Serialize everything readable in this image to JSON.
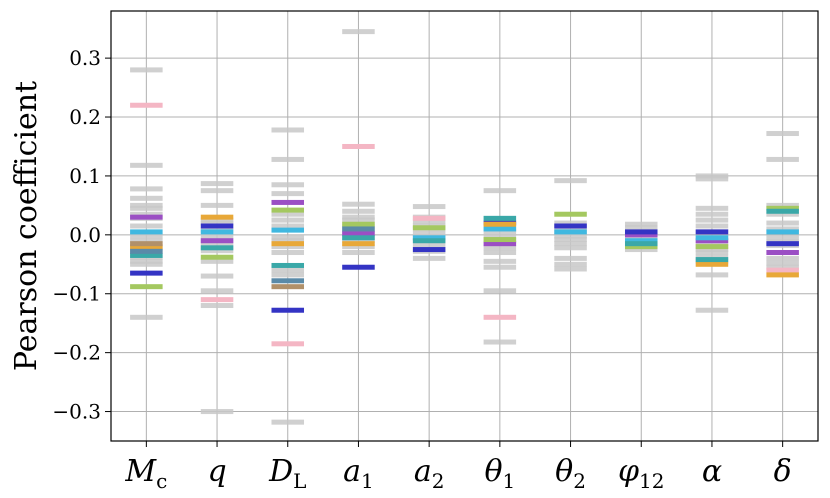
{
  "chart_data": {
    "type": "scatter",
    "title": "",
    "xlabel": "",
    "ylabel": "Pearson coefficient",
    "ylim": [
      -0.35,
      0.38
    ],
    "yticks": [
      -0.3,
      -0.2,
      -0.1,
      0.0,
      0.1,
      0.2,
      0.3
    ],
    "ytick_labels": [
      "−0.3",
      "−0.2",
      "−0.1",
      "0.0",
      "0.1",
      "0.2",
      "0.3"
    ],
    "grid": true,
    "categories": [
      "M_c",
      "q",
      "D_L",
      "a_1",
      "a_2",
      "θ_1",
      "θ_2",
      "φ_12",
      "α",
      "δ"
    ],
    "category_labels": [
      {
        "base": "M",
        "sub": "c"
      },
      {
        "base": "q",
        "sub": ""
      },
      {
        "base": "D",
        "sub": "L"
      },
      {
        "base": "a",
        "sub": "1"
      },
      {
        "base": "a",
        "sub": "2"
      },
      {
        "base": "θ",
        "sub": "1"
      },
      {
        "base": "θ",
        "sub": "2"
      },
      {
        "base": "φ",
        "sub": "12"
      },
      {
        "base": "α",
        "sub": ""
      },
      {
        "base": "δ",
        "sub": ""
      }
    ],
    "series": [
      {
        "name": "background",
        "color": "#c8c8c8",
        "values": [
          [
            0.28,
            0.118,
            0.078,
            0.062,
            0.05,
            0.045,
            0.035,
            0.028,
            0.015,
            -0.002,
            -0.01,
            -0.022,
            -0.028,
            -0.038,
            -0.045,
            -0.05,
            -0.14
          ],
          [
            0.087,
            0.075,
            0.05,
            0.025,
            0.02,
            0.008,
            -0.003,
            -0.012,
            -0.02,
            -0.027,
            -0.045,
            -0.07,
            -0.095,
            -0.12,
            -0.3
          ],
          [
            0.178,
            0.128,
            0.085,
            0.07,
            0.035,
            0.025,
            0.015,
            -0.005,
            -0.01,
            -0.02,
            -0.03,
            -0.06,
            -0.068,
            -0.318
          ],
          [
            0.345,
            0.052,
            0.04,
            0.03,
            0.025,
            0.015,
            0.008,
            0.002,
            -0.005,
            -0.01,
            -0.02,
            -0.03
          ],
          [
            0.048,
            0.03,
            0.022,
            0.015,
            0.01,
            0.002,
            -0.005,
            -0.01,
            -0.018,
            -0.028,
            -0.04
          ],
          [
            0.075,
            0.02,
            0.01,
            0.005,
            -0.003,
            -0.01,
            -0.022,
            -0.03,
            -0.045,
            -0.055,
            -0.095,
            -0.182
          ],
          [
            0.092,
            0.02,
            0.012,
            0.005,
            -0.002,
            -0.008,
            -0.015,
            -0.022,
            -0.04,
            -0.05,
            -0.058
          ],
          [
            0.018,
            0.012,
            0.005,
            -0.002,
            -0.01,
            -0.018,
            -0.025
          ],
          [
            0.1,
            0.095,
            0.045,
            0.035,
            0.025,
            0.015,
            0.005,
            -0.005,
            -0.015,
            -0.025,
            -0.03,
            -0.038,
            -0.045,
            -0.068,
            -0.128
          ],
          [
            0.172,
            0.128,
            0.05,
            0.035,
            0.02,
            0.01,
            -0.005,
            -0.012,
            -0.018,
            -0.04,
            -0.048,
            -0.055
          ]
        ]
      },
      {
        "name": "pink",
        "color": "#f4b6c4",
        "values": [
          [
            0.22
          ],
          [
            -0.11
          ],
          [
            -0.185
          ],
          [
            0.15
          ],
          [
            0.028
          ],
          [
            -0.14
          ],
          [],
          [],
          [
            -0.02
          ],
          [
            -0.06
          ]
        ]
      },
      {
        "name": "purple",
        "color": "#9b4fc4",
        "values": [
          [
            0.03
          ],
          [
            -0.01
          ],
          [
            0.055
          ],
          [
            0.002
          ],
          [],
          [
            -0.015
          ],
          [],
          [
            0.0
          ],
          [
            -0.01
          ],
          [
            -0.03
          ]
        ]
      },
      {
        "name": "blue",
        "color": "#3434c4",
        "values": [
          [
            -0.065
          ],
          [
            0.015
          ],
          [
            -0.128
          ],
          [
            -0.055
          ],
          [
            -0.025
          ],
          [
            0.02
          ],
          [
            0.015
          ],
          [
            0.005
          ],
          [
            0.005
          ],
          [
            -0.015
          ]
        ]
      },
      {
        "name": "cyan",
        "color": "#40b8e0",
        "values": [
          [
            0.005
          ],
          [
            0.005
          ],
          [
            0.008
          ],
          [],
          [
            -0.005
          ],
          [
            0.01
          ],
          [
            0.005
          ],
          [
            -0.01
          ],
          [
            -0.005
          ],
          [
            0.005
          ]
        ]
      },
      {
        "name": "orange",
        "color": "#e8a838",
        "values": [
          [
            -0.02
          ],
          [
            0.03
          ],
          [
            -0.015
          ],
          [
            -0.015
          ],
          [],
          [
            0.018
          ],
          [],
          [],
          [
            -0.05
          ],
          [
            -0.068
          ]
        ]
      },
      {
        "name": "green",
        "color": "#a4c860",
        "values": [
          [
            -0.088
          ],
          [
            -0.038
          ],
          [
            0.042
          ],
          [
            0.018
          ],
          [
            0.012
          ],
          [
            -0.008
          ],
          [
            0.035
          ],
          [
            -0.02
          ],
          [
            -0.02
          ],
          [
            0.045
          ]
        ]
      },
      {
        "name": "teal",
        "color": "#3aa8a8",
        "values": [
          [
            -0.035
          ],
          [
            -0.022
          ],
          [
            -0.052
          ],
          [
            -0.005
          ],
          [
            -0.01
          ],
          [
            0.028
          ],
          [],
          [
            -0.015
          ],
          [
            -0.042
          ],
          [
            0.04
          ]
        ]
      },
      {
        "name": "brown",
        "color": "#b0906a",
        "values": [
          [
            -0.015
          ],
          [],
          [
            -0.088
          ],
          [],
          [],
          [],
          [],
          [],
          [],
          []
        ]
      },
      {
        "name": "slate",
        "color": "#5a8aa8",
        "values": [
          [
            -0.028
          ],
          [],
          [
            -0.078
          ],
          [
            0.01
          ],
          [],
          [],
          [],
          [],
          [],
          []
        ]
      }
    ]
  }
}
